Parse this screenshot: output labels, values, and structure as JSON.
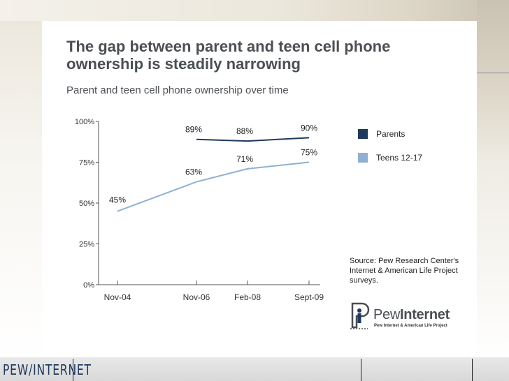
{
  "slide": {
    "title": "The gap between parent and teen cell phone ownership is steadily narrowing",
    "source": "Source: Pew Research Center's Internet & American Life Project surveys.",
    "logo_main": "Pew",
    "logo_bold": "Internet",
    "logo_sub": "Pew Internet & American Life Project",
    "footer_logo": "PEW/INTERNET"
  },
  "colors": {
    "parents": "#1f3a5f",
    "teens": "#8fb0d3",
    "text": "#4b4f54"
  },
  "chart_data": {
    "type": "line",
    "title": "Parent and teen cell phone ownership over time",
    "categories": [
      "Nov-04",
      "Nov-06",
      "Feb-08",
      "Sept-09"
    ],
    "yticks": [
      "0%",
      "25%",
      "50%",
      "75%",
      "100%"
    ],
    "ylim": [
      0,
      100
    ],
    "legend_placement": "right",
    "series": [
      {
        "name": "Parents",
        "values": [
          null,
          89,
          88,
          90
        ],
        "labels": [
          null,
          "89%",
          "88%",
          "90%"
        ]
      },
      {
        "name": "Teens 12-17",
        "values": [
          45,
          63,
          71,
          75
        ],
        "labels": [
          "45%",
          "63%",
          "71%",
          "75%"
        ]
      }
    ]
  }
}
